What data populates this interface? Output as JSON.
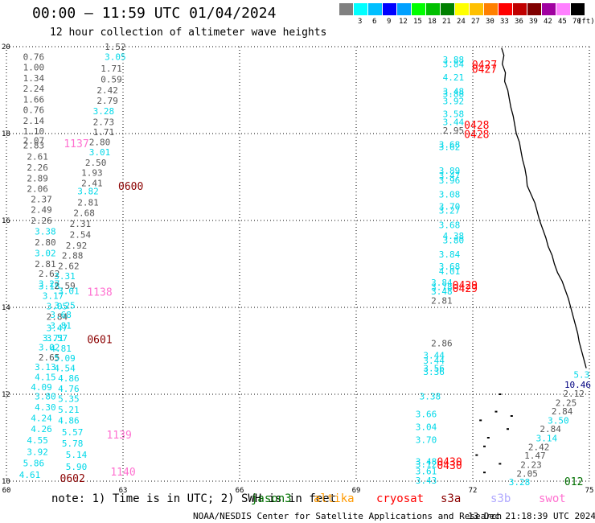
{
  "title": "00:00 – 11:59 UTC 01/04/2024",
  "subtitle": "12 hour collection of altimeter wave heights",
  "scale": {
    "unit": "(ft)",
    "swatches": [
      {
        "label": "",
        "color": "#808080"
      },
      {
        "label": "3",
        "color": "#00ffff"
      },
      {
        "label": "6",
        "color": "#00bfff"
      },
      {
        "label": "9",
        "color": "#0000ff"
      },
      {
        "label": "12",
        "color": "#00a0ff"
      },
      {
        "label": "15",
        "color": "#00ff00"
      },
      {
        "label": "18",
        "color": "#00c000"
      },
      {
        "label": "21",
        "color": "#008000"
      },
      {
        "label": "24",
        "color": "#ffff00"
      },
      {
        "label": "27",
        "color": "#ffc000"
      },
      {
        "label": "30",
        "color": "#ff8000"
      },
      {
        "label": "33",
        "color": "#ff0000"
      },
      {
        "label": "36",
        "color": "#c00000"
      },
      {
        "label": "39",
        "color": "#800000"
      },
      {
        "label": "42",
        "color": "#a000a0"
      },
      {
        "label": "45",
        "color": "#ff80ff"
      },
      {
        "label": "70",
        "color": "#000000"
      }
    ]
  },
  "axes": {
    "lon_ticks": [
      60,
      63,
      66,
      69,
      72,
      75
    ],
    "lat_ticks": [
      10,
      12,
      14,
      16,
      18,
      20
    ],
    "lon_range": [
      60,
      75
    ],
    "lat_range": [
      10,
      20
    ]
  },
  "colors": {
    "gray": "#555555",
    "cyan": "#00d8e8",
    "pink": "#ff70d0",
    "red": "#ff0000",
    "maroon": "#8b0000",
    "navy": "#000080",
    "green": "#007000",
    "orange": "#ff9900",
    "lilac": "#b0a8ff"
  },
  "wave_heights": [
    {
      "lon": 60.7,
      "lat": 19.77,
      "v": "0.76",
      "c": "gray"
    },
    {
      "lon": 60.7,
      "lat": 19.53,
      "v": "1.00",
      "c": "gray"
    },
    {
      "lon": 60.7,
      "lat": 19.28,
      "v": "1.34",
      "c": "gray"
    },
    {
      "lon": 60.7,
      "lat": 19.04,
      "v": "2.24",
      "c": "gray"
    },
    {
      "lon": 60.7,
      "lat": 18.79,
      "v": "1.66",
      "c": "gray"
    },
    {
      "lon": 60.7,
      "lat": 18.55,
      "v": "0.76",
      "c": "gray"
    },
    {
      "lon": 60.7,
      "lat": 18.3,
      "v": "2.14",
      "c": "gray"
    },
    {
      "lon": 60.7,
      "lat": 18.06,
      "v": "1.10",
      "c": "gray"
    },
    {
      "lon": 60.7,
      "lat": 17.84,
      "v": "2.07",
      "c": "gray"
    },
    {
      "lon": 60.7,
      "lat": 17.73,
      "v": "2.83",
      "c": "gray"
    },
    {
      "lon": 60.8,
      "lat": 17.47,
      "v": "2.61",
      "c": "gray"
    },
    {
      "lon": 60.8,
      "lat": 17.22,
      "v": "2.26",
      "c": "gray"
    },
    {
      "lon": 60.8,
      "lat": 16.97,
      "v": "2.89",
      "c": "gray"
    },
    {
      "lon": 60.8,
      "lat": 16.73,
      "v": "2.06",
      "c": "gray"
    },
    {
      "lon": 60.9,
      "lat": 16.49,
      "v": "2.37",
      "c": "gray"
    },
    {
      "lon": 60.9,
      "lat": 16.25,
      "v": "2.49",
      "c": "gray"
    },
    {
      "lon": 60.9,
      "lat": 16.0,
      "v": "2.26",
      "c": "gray"
    },
    {
      "lon": 61.0,
      "lat": 15.75,
      "v": "3.38",
      "c": "cyan"
    },
    {
      "lon": 61.0,
      "lat": 15.5,
      "v": "2.80",
      "c": "gray"
    },
    {
      "lon": 61.0,
      "lat": 15.25,
      "v": "3.02",
      "c": "cyan"
    },
    {
      "lon": 61.0,
      "lat": 15.0,
      "v": "2.81",
      "c": "gray"
    },
    {
      "lon": 61.1,
      "lat": 14.78,
      "v": "2.62",
      "c": "gray"
    },
    {
      "lon": 61.1,
      "lat": 14.55,
      "v": "3.27",
      "c": "cyan"
    },
    {
      "lon": 61.1,
      "lat": 14.49,
      "v": "3.18",
      "c": "cyan"
    },
    {
      "lon": 61.2,
      "lat": 14.27,
      "v": "3.17",
      "c": "cyan"
    },
    {
      "lon": 61.3,
      "lat": 14.03,
      "v": "3.05",
      "c": "cyan"
    },
    {
      "lon": 61.3,
      "lat": 13.79,
      "v": "2.84",
      "c": "gray"
    },
    {
      "lon": 61.3,
      "lat": 13.53,
      "v": "3.47",
      "c": "cyan"
    },
    {
      "lon": 61.2,
      "lat": 13.3,
      "v": "3.71",
      "c": "cyan"
    },
    {
      "lon": 61.1,
      "lat": 13.08,
      "v": "3.02",
      "c": "cyan"
    },
    {
      "lon": 61.1,
      "lat": 12.85,
      "v": "2.65",
      "c": "gray"
    },
    {
      "lon": 61.0,
      "lat": 12.63,
      "v": "3.13",
      "c": "cyan"
    },
    {
      "lon": 61.0,
      "lat": 12.4,
      "v": "4.15",
      "c": "cyan"
    },
    {
      "lon": 60.9,
      "lat": 12.17,
      "v": "4.09",
      "c": "cyan"
    },
    {
      "lon": 61.0,
      "lat": 11.95,
      "v": "3.80",
      "c": "cyan"
    },
    {
      "lon": 61.0,
      "lat": 11.7,
      "v": "4.30",
      "c": "cyan"
    },
    {
      "lon": 60.9,
      "lat": 11.45,
      "v": "4.24",
      "c": "cyan"
    },
    {
      "lon": 60.9,
      "lat": 11.2,
      "v": "4.26",
      "c": "cyan"
    },
    {
      "lon": 60.8,
      "lat": 10.94,
      "v": "4.55",
      "c": "cyan"
    },
    {
      "lon": 60.8,
      "lat": 10.68,
      "v": "3.92",
      "c": "cyan"
    },
    {
      "lon": 60.7,
      "lat": 10.42,
      "v": "5.86",
      "c": "cyan"
    },
    {
      "lon": 60.6,
      "lat": 10.15,
      "v": "4.61",
      "c": "cyan"
    },
    {
      "lon": 62.8,
      "lat": 20.0,
      "v": "1.52",
      "c": "gray"
    },
    {
      "lon": 62.8,
      "lat": 19.77,
      "v": "3.05",
      "c": "cyan"
    },
    {
      "lon": 62.7,
      "lat": 19.5,
      "v": "1.71",
      "c": "gray"
    },
    {
      "lon": 62.7,
      "lat": 19.25,
      "v": "0.59",
      "c": "gray"
    },
    {
      "lon": 62.6,
      "lat": 19.0,
      "v": "2.42",
      "c": "gray"
    },
    {
      "lon": 62.6,
      "lat": 18.76,
      "v": "2.79",
      "c": "gray"
    },
    {
      "lon": 62.5,
      "lat": 18.52,
      "v": "3.28",
      "c": "cyan"
    },
    {
      "lon": 62.5,
      "lat": 18.27,
      "v": "2.73",
      "c": "gray"
    },
    {
      "lon": 62.5,
      "lat": 18.04,
      "v": "1.71",
      "c": "gray"
    },
    {
      "lon": 62.4,
      "lat": 17.81,
      "v": "2.80",
      "c": "gray"
    },
    {
      "lon": 62.4,
      "lat": 17.57,
      "v": "3.01",
      "c": "cyan"
    },
    {
      "lon": 62.3,
      "lat": 17.33,
      "v": "2.50",
      "c": "gray"
    },
    {
      "lon": 62.2,
      "lat": 17.1,
      "v": "1.93",
      "c": "gray"
    },
    {
      "lon": 62.2,
      "lat": 16.86,
      "v": "2.41",
      "c": "gray"
    },
    {
      "lon": 62.1,
      "lat": 16.68,
      "v": "3.82",
      "c": "cyan"
    },
    {
      "lon": 62.1,
      "lat": 16.42,
      "v": "2.81",
      "c": "gray"
    },
    {
      "lon": 62.0,
      "lat": 16.18,
      "v": "2.68",
      "c": "gray"
    },
    {
      "lon": 61.9,
      "lat": 15.93,
      "v": "2.31",
      "c": "gray"
    },
    {
      "lon": 61.9,
      "lat": 15.68,
      "v": "2.54",
      "c": "gray"
    },
    {
      "lon": 61.8,
      "lat": 15.43,
      "v": "2.92",
      "c": "gray"
    },
    {
      "lon": 61.7,
      "lat": 15.19,
      "v": "2.88",
      "c": "gray"
    },
    {
      "lon": 61.6,
      "lat": 14.95,
      "v": "2.62",
      "c": "gray"
    },
    {
      "lon": 61.5,
      "lat": 14.72,
      "v": "3.31",
      "c": "cyan"
    },
    {
      "lon": 61.5,
      "lat": 14.5,
      "v": "2.59",
      "c": "gray"
    },
    {
      "lon": 61.6,
      "lat": 14.38,
      "v": "3.01",
      "c": "cyan"
    },
    {
      "lon": 61.5,
      "lat": 14.05,
      "v": "3.25",
      "c": "cyan"
    },
    {
      "lon": 61.4,
      "lat": 13.83,
      "v": "3.68",
      "c": "cyan"
    },
    {
      "lon": 61.4,
      "lat": 13.58,
      "v": "3.81",
      "c": "cyan"
    },
    {
      "lon": 61.3,
      "lat": 13.3,
      "v": "3.57",
      "c": "cyan"
    },
    {
      "lon": 61.4,
      "lat": 13.06,
      "v": "4.81",
      "c": "cyan"
    },
    {
      "lon": 61.5,
      "lat": 12.83,
      "v": "5.09",
      "c": "cyan"
    },
    {
      "lon": 61.5,
      "lat": 12.6,
      "v": "4.54",
      "c": "cyan"
    },
    {
      "lon": 61.6,
      "lat": 12.37,
      "v": "4.86",
      "c": "cyan"
    },
    {
      "lon": 61.6,
      "lat": 12.13,
      "v": "4.76",
      "c": "cyan"
    },
    {
      "lon": 61.6,
      "lat": 11.9,
      "v": "5.35",
      "c": "cyan"
    },
    {
      "lon": 61.6,
      "lat": 11.65,
      "v": "5.21",
      "c": "cyan"
    },
    {
      "lon": 61.6,
      "lat": 11.4,
      "v": "4.86",
      "c": "cyan"
    },
    {
      "lon": 61.7,
      "lat": 11.13,
      "v": "5.57",
      "c": "cyan"
    },
    {
      "lon": 61.7,
      "lat": 10.87,
      "v": "5.78",
      "c": "cyan"
    },
    {
      "lon": 61.8,
      "lat": 10.61,
      "v": "5.14",
      "c": "cyan"
    },
    {
      "lon": 61.8,
      "lat": 10.33,
      "v": "5.90",
      "c": "cyan"
    },
    {
      "lon": 71.5,
      "lat": 19.7,
      "v": "3.88",
      "c": "cyan"
    },
    {
      "lon": 71.5,
      "lat": 19.6,
      "v": "3.84",
      "c": "cyan"
    },
    {
      "lon": 71.5,
      "lat": 19.3,
      "v": "4.21",
      "c": "cyan"
    },
    {
      "lon": 71.5,
      "lat": 18.97,
      "v": "3.48",
      "c": "cyan"
    },
    {
      "lon": 71.5,
      "lat": 18.92,
      "v": "3.88",
      "c": "cyan"
    },
    {
      "lon": 71.5,
      "lat": 18.75,
      "v": "3.92",
      "c": "cyan"
    },
    {
      "lon": 71.5,
      "lat": 18.45,
      "v": "3.58",
      "c": "cyan"
    },
    {
      "lon": 71.5,
      "lat": 18.27,
      "v": "3.44",
      "c": "cyan"
    },
    {
      "lon": 71.5,
      "lat": 18.07,
      "v": "2.95",
      "c": "gray"
    },
    {
      "lon": 71.4,
      "lat": 17.75,
      "v": "3.68",
      "c": "cyan"
    },
    {
      "lon": 71.4,
      "lat": 17.69,
      "v": "3.62",
      "c": "cyan"
    },
    {
      "lon": 71.4,
      "lat": 17.15,
      "v": "3.89",
      "c": "cyan"
    },
    {
      "lon": 71.4,
      "lat": 17.04,
      "v": "3.47",
      "c": "cyan"
    },
    {
      "lon": 71.4,
      "lat": 16.93,
      "v": "3.96",
      "c": "cyan"
    },
    {
      "lon": 71.4,
      "lat": 16.6,
      "v": "3.08",
      "c": "cyan"
    },
    {
      "lon": 71.4,
      "lat": 16.32,
      "v": "3.70",
      "c": "cyan"
    },
    {
      "lon": 71.4,
      "lat": 16.23,
      "v": "3.27",
      "c": "cyan"
    },
    {
      "lon": 71.4,
      "lat": 15.9,
      "v": "3.68",
      "c": "cyan"
    },
    {
      "lon": 71.5,
      "lat": 15.65,
      "v": "4.38",
      "c": "cyan"
    },
    {
      "lon": 71.5,
      "lat": 15.55,
      "v": "3.80",
      "c": "cyan"
    },
    {
      "lon": 71.4,
      "lat": 15.22,
      "v": "3.84",
      "c": "cyan"
    },
    {
      "lon": 71.4,
      "lat": 14.94,
      "v": "3.68",
      "c": "cyan"
    },
    {
      "lon": 71.4,
      "lat": 14.83,
      "v": "4.01",
      "c": "cyan"
    },
    {
      "lon": 71.2,
      "lat": 14.57,
      "v": "3.84",
      "c": "cyan"
    },
    {
      "lon": 71.2,
      "lat": 14.47,
      "v": "3.78",
      "c": "cyan"
    },
    {
      "lon": 71.2,
      "lat": 14.37,
      "v": "3.48",
      "c": "cyan"
    },
    {
      "lon": 71.2,
      "lat": 14.16,
      "v": "2.81",
      "c": "gray"
    },
    {
      "lon": 71.2,
      "lat": 13.18,
      "v": "2.86",
      "c": "gray"
    },
    {
      "lon": 71.0,
      "lat": 12.9,
      "v": "3.44",
      "c": "cyan"
    },
    {
      "lon": 71.0,
      "lat": 12.78,
      "v": "3.44",
      "c": "cyan"
    },
    {
      "lon": 71.0,
      "lat": 12.6,
      "v": "3.56",
      "c": "cyan"
    },
    {
      "lon": 71.0,
      "lat": 12.52,
      "v": "3.36",
      "c": "cyan"
    },
    {
      "lon": 70.9,
      "lat": 11.95,
      "v": "3.38",
      "c": "cyan"
    },
    {
      "lon": 70.8,
      "lat": 11.55,
      "v": "3.66",
      "c": "cyan"
    },
    {
      "lon": 70.8,
      "lat": 11.25,
      "v": "3.04",
      "c": "cyan"
    },
    {
      "lon": 70.8,
      "lat": 10.95,
      "v": "3.70",
      "c": "cyan"
    },
    {
      "lon": 70.8,
      "lat": 10.45,
      "v": "3.48",
      "c": "cyan"
    },
    {
      "lon": 70.8,
      "lat": 10.39,
      "v": "3.12",
      "c": "cyan"
    },
    {
      "lon": 70.8,
      "lat": 10.23,
      "v": "3.61",
      "c": "cyan"
    },
    {
      "lon": 70.8,
      "lat": 10.02,
      "v": "3.43",
      "c": "cyan"
    },
    {
      "lon": 74.8,
      "lat": 12.45,
      "v": "5.3",
      "c": "cyan"
    },
    {
      "lon": 74.7,
      "lat": 12.22,
      "v": "10.46",
      "c": "navy"
    },
    {
      "lon": 74.6,
      "lat": 12.02,
      "v": "2.12",
      "c": "gray"
    },
    {
      "lon": 74.4,
      "lat": 11.81,
      "v": "2.25",
      "c": "gray"
    },
    {
      "lon": 74.3,
      "lat": 11.61,
      "v": "2.84",
      "c": "gray"
    },
    {
      "lon": 74.2,
      "lat": 11.4,
      "v": "3.50",
      "c": "cyan"
    },
    {
      "lon": 74.0,
      "lat": 11.2,
      "v": "2.84",
      "c": "gray"
    },
    {
      "lon": 73.9,
      "lat": 10.99,
      "v": "3.14",
      "c": "cyan"
    },
    {
      "lon": 73.7,
      "lat": 10.79,
      "v": "2.42",
      "c": "gray"
    },
    {
      "lon": 73.6,
      "lat": 10.59,
      "v": "1.47",
      "c": "gray"
    },
    {
      "lon": 73.5,
      "lat": 10.38,
      "v": "2.23",
      "c": "gray"
    },
    {
      "lon": 73.4,
      "lat": 10.18,
      "v": "2.05",
      "c": "gray"
    },
    {
      "lon": 73.2,
      "lat": 9.98,
      "v": "3.28",
      "c": "cyan"
    }
  ],
  "pass_times": [
    {
      "lon": 61.8,
      "lat": 17.78,
      "v": "1137",
      "c": "pink"
    },
    {
      "lon": 63.2,
      "lat": 16.8,
      "v": "0600",
      "c": "maroon"
    },
    {
      "lon": 62.4,
      "lat": 14.36,
      "v": "1138",
      "c": "pink"
    },
    {
      "lon": 62.4,
      "lat": 13.27,
      "v": "0601",
      "c": "maroon"
    },
    {
      "lon": 62.9,
      "lat": 11.07,
      "v": "1139",
      "c": "pink"
    },
    {
      "lon": 63.0,
      "lat": 10.22,
      "v": "1140",
      "c": "pink"
    },
    {
      "lon": 61.7,
      "lat": 10.07,
      "v": "0602",
      "c": "maroon"
    },
    {
      "lon": 72.3,
      "lat": 19.59,
      "v": "0427",
      "c": "red"
    },
    {
      "lon": 72.3,
      "lat": 19.49,
      "v": "0427",
      "c": "red"
    },
    {
      "lon": 72.1,
      "lat": 18.2,
      "v": "0428",
      "c": "red"
    },
    {
      "lon": 72.1,
      "lat": 17.99,
      "v": "0428",
      "c": "red"
    },
    {
      "lon": 71.8,
      "lat": 14.52,
      "v": "0429",
      "c": "red"
    },
    {
      "lon": 71.8,
      "lat": 14.44,
      "v": "0429",
      "c": "red"
    },
    {
      "lon": 71.4,
      "lat": 10.45,
      "v": "0430",
      "c": "red"
    },
    {
      "lon": 71.4,
      "lat": 10.37,
      "v": "0430",
      "c": "red"
    },
    {
      "lon": 74.6,
      "lat": 10.0,
      "v": "012",
      "c": "green"
    }
  ],
  "coastline": [
    [
      72.74,
      19.97
    ],
    [
      72.8,
      19.8
    ],
    [
      72.76,
      19.6
    ],
    [
      72.84,
      19.4
    ],
    [
      72.82,
      19.2
    ],
    [
      72.9,
      19.0
    ],
    [
      72.94,
      18.8
    ],
    [
      72.98,
      18.6
    ],
    [
      73.04,
      18.4
    ],
    [
      73.08,
      18.2
    ],
    [
      73.12,
      18.0
    ],
    [
      73.2,
      17.8
    ],
    [
      73.24,
      17.6
    ],
    [
      73.28,
      17.4
    ],
    [
      73.34,
      17.2
    ],
    [
      73.38,
      17.0
    ],
    [
      73.4,
      16.8
    ],
    [
      73.5,
      16.6
    ],
    [
      73.6,
      16.4
    ],
    [
      73.66,
      16.2
    ],
    [
      73.72,
      16.0
    ],
    [
      73.8,
      15.8
    ],
    [
      73.88,
      15.6
    ],
    [
      73.94,
      15.4
    ],
    [
      74.04,
      15.2
    ],
    [
      74.1,
      15.0
    ],
    [
      74.18,
      14.8
    ],
    [
      74.3,
      14.6
    ],
    [
      74.38,
      14.4
    ],
    [
      74.46,
      14.2
    ],
    [
      74.52,
      14.0
    ],
    [
      74.58,
      13.8
    ],
    [
      74.64,
      13.6
    ],
    [
      74.7,
      13.4
    ],
    [
      74.74,
      13.2
    ],
    [
      74.8,
      13.0
    ],
    [
      74.86,
      12.8
    ],
    [
      74.92,
      12.6
    ]
  ],
  "islands": [
    [
      72.7,
      12.0
    ],
    [
      72.6,
      11.6
    ],
    [
      72.2,
      11.4
    ],
    [
      72.9,
      11.2
    ],
    [
      72.4,
      11.0
    ],
    [
      72.3,
      10.8
    ],
    [
      72.1,
      10.6
    ],
    [
      72.7,
      10.4
    ],
    [
      72.3,
      10.2
    ],
    [
      73.0,
      11.5
    ]
  ],
  "legend": {
    "note": "note: 1) Time is in UTC; 2) SWH is in feet",
    "satellites": [
      {
        "name": "jason3",
        "c": "green",
        "x": 312
      },
      {
        "name": "altika",
        "c": "orange",
        "x": 390
      },
      {
        "name": "cryosat",
        "c": "red",
        "x": 468
      },
      {
        "name": "s3a",
        "c": "maroon",
        "x": 548
      },
      {
        "name": "s3b",
        "c": "lilac",
        "x": 610
      },
      {
        "name": "swot",
        "c": "pink",
        "x": 670
      }
    ]
  },
  "credit": "NOAA/NESDIS Center for Satellite Applications and Research",
  "timestamp": "13 Dec 21:18:39 UTC 2024"
}
